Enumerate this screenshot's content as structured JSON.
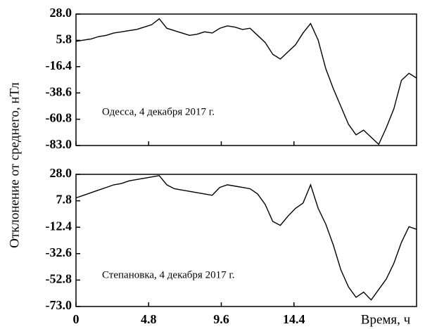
{
  "chart_data": [
    {
      "type": "line",
      "ylabel": "Отклонение от среднего, нТл",
      "annotation": "Одесса, 4 декабря 2017 г.",
      "xlim": [
        0,
        22.5
      ],
      "ylim": [
        -83,
        28
      ],
      "yticks": [
        {
          "value": 28,
          "label": "28.0"
        },
        5.8,
        -16.4,
        -38.6,
        -60.8,
        {
          "value": -83,
          "label": "-83.0"
        }
      ],
      "x": [
        0,
        0.5,
        1,
        1.5,
        2,
        2.5,
        3,
        3.5,
        4,
        4.5,
        5,
        5.5,
        6,
        6.5,
        7,
        7.5,
        8,
        8.5,
        9,
        9.5,
        10,
        10.5,
        11,
        11.5,
        12,
        12.5,
        13,
        13.5,
        14,
        14.5,
        15,
        15.5,
        16,
        16.5,
        17,
        17.5,
        18,
        18.5,
        19,
        19.5,
        20,
        20.5,
        21,
        21.5,
        22,
        22.5
      ],
      "series": [
        {
          "color": "#000000",
          "values": [
            5,
            6,
            7,
            9,
            10,
            12,
            13,
            14,
            15,
            17,
            19,
            24,
            16,
            14,
            12,
            10,
            11,
            13,
            12,
            16,
            18,
            17,
            15,
            16,
            10,
            4,
            -6,
            -10,
            -4,
            2,
            12,
            20,
            6,
            -18,
            -35,
            -50,
            -65,
            -74,
            -70,
            -76,
            -82,
            -68,
            -52,
            -28,
            -22,
            -26
          ]
        }
      ]
    },
    {
      "type": "line",
      "xlabel": "Время, ч",
      "annotation": "Степановка, 4 декабря 2017 г.",
      "xlim": [
        0,
        22.5
      ],
      "ylim": [
        -73,
        28
      ],
      "xticks": [
        0,
        4.8,
        9.6,
        14.4
      ],
      "yticks": [
        {
          "value": 28,
          "label": "28.0"
        },
        7.8,
        -12.4,
        -32.6,
        -52.8,
        {
          "value": -73,
          "label": "-73.0"
        }
      ],
      "x": [
        0,
        0.5,
        1,
        1.5,
        2,
        2.5,
        3,
        3.5,
        4,
        4.5,
        5,
        5.5,
        6,
        6.5,
        7,
        7.5,
        8,
        8.5,
        9,
        9.5,
        10,
        10.5,
        11,
        11.5,
        12,
        12.5,
        13,
        13.5,
        14,
        14.5,
        15,
        15.5,
        16,
        16.5,
        17,
        17.5,
        18,
        18.5,
        19,
        19.5,
        20,
        20.5,
        21,
        21.5,
        22,
        22.5
      ],
      "series": [
        {
          "color": "#000000",
          "values": [
            10,
            12,
            14,
            16,
            18,
            20,
            21,
            23,
            24,
            25,
            26,
            27,
            20,
            17,
            16,
            15,
            14,
            13,
            12,
            18,
            20,
            19,
            18,
            17,
            13,
            5,
            -8,
            -11,
            -4,
            2,
            6,
            20,
            2,
            -10,
            -26,
            -45,
            -58,
            -66,
            -62,
            -68,
            -60,
            -52,
            -40,
            -24,
            -12,
            -14
          ]
        }
      ]
    }
  ]
}
